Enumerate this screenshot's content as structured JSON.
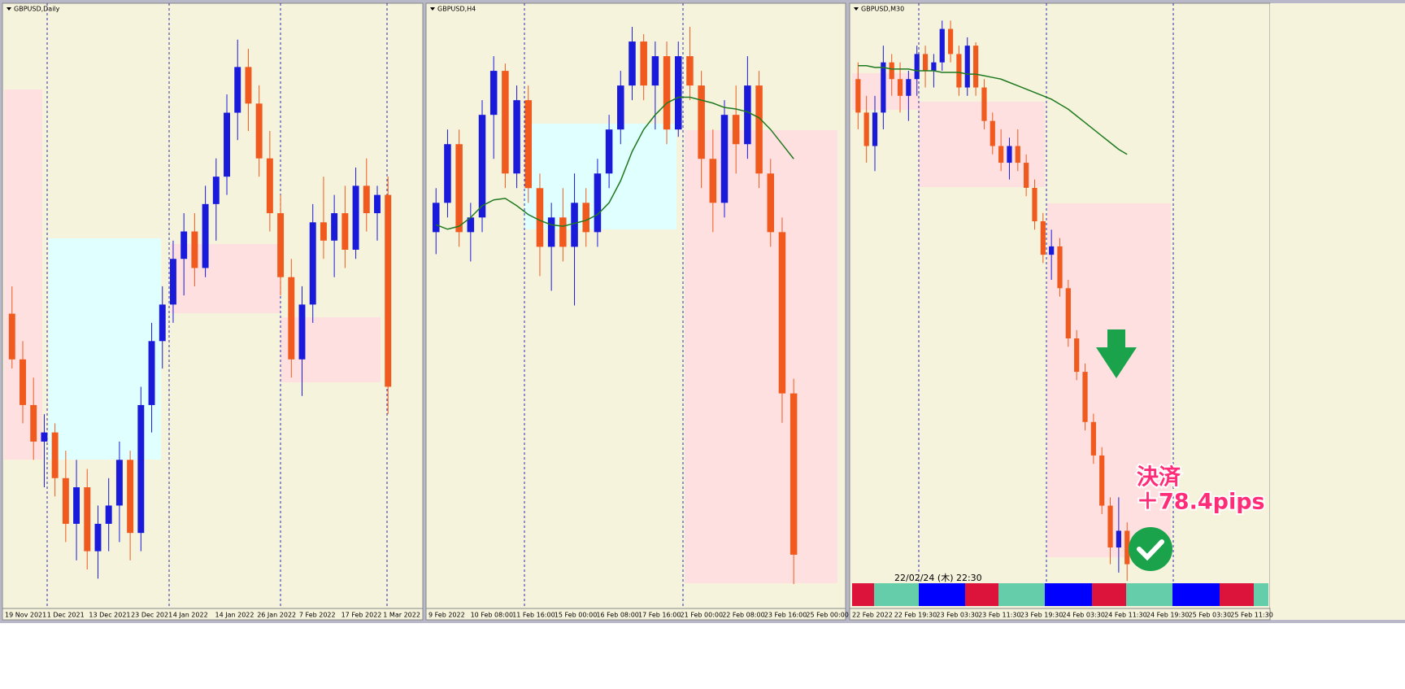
{
  "chart_data": [
    {
      "type": "candlestick",
      "title": "GBPUSD,Daily",
      "up_color": "#1a1adb",
      "down_color": "#f05a1e",
      "ylim": [
        1.313,
        1.378
      ],
      "x_labels": [
        "19 Nov 2021",
        "1 Dec 2021",
        "13 Dec 2021",
        "23 Dec 2021",
        "4 Jan 2022",
        "14 Jan 2022",
        "26 Jan 2022",
        "7 Feb 2022",
        "17 Feb 2022",
        "1 Mar 2022"
      ],
      "ohlc": [
        [
          1.345,
          1.348,
          1.339,
          1.34
        ],
        [
          1.34,
          1.342,
          1.333,
          1.335
        ],
        [
          1.335,
          1.338,
          1.329,
          1.331
        ],
        [
          1.331,
          1.334,
          1.326,
          1.332
        ],
        [
          1.332,
          1.333,
          1.325,
          1.327
        ],
        [
          1.327,
          1.33,
          1.32,
          1.322
        ],
        [
          1.322,
          1.329,
          1.318,
          1.326
        ],
        [
          1.326,
          1.328,
          1.317,
          1.319
        ],
        [
          1.319,
          1.324,
          1.316,
          1.322
        ],
        [
          1.322,
          1.327,
          1.319,
          1.324
        ],
        [
          1.324,
          1.331,
          1.32,
          1.329
        ],
        [
          1.329,
          1.33,
          1.318,
          1.321
        ],
        [
          1.321,
          1.337,
          1.319,
          1.335
        ],
        [
          1.335,
          1.344,
          1.332,
          1.342
        ],
        [
          1.342,
          1.348,
          1.339,
          1.346
        ],
        [
          1.346,
          1.353,
          1.344,
          1.351
        ],
        [
          1.351,
          1.356,
          1.347,
          1.354
        ],
        [
          1.354,
          1.356,
          1.348,
          1.35
        ],
        [
          1.35,
          1.359,
          1.349,
          1.357
        ],
        [
          1.357,
          1.362,
          1.353,
          1.36
        ],
        [
          1.36,
          1.369,
          1.358,
          1.367
        ],
        [
          1.367,
          1.375,
          1.364,
          1.372
        ],
        [
          1.372,
          1.374,
          1.365,
          1.368
        ],
        [
          1.368,
          1.37,
          1.36,
          1.362
        ],
        [
          1.362,
          1.365,
          1.354,
          1.356
        ],
        [
          1.356,
          1.358,
          1.347,
          1.349
        ],
        [
          1.349,
          1.351,
          1.338,
          1.34
        ],
        [
          1.34,
          1.348,
          1.336,
          1.346
        ],
        [
          1.346,
          1.357,
          1.344,
          1.355
        ],
        [
          1.355,
          1.36,
          1.351,
          1.353
        ],
        [
          1.353,
          1.358,
          1.349,
          1.356
        ],
        [
          1.356,
          1.359,
          1.35,
          1.352
        ],
        [
          1.352,
          1.361,
          1.351,
          1.359
        ],
        [
          1.359,
          1.362,
          1.354,
          1.356
        ],
        [
          1.356,
          1.359,
          1.353,
          1.358
        ],
        [
          1.358,
          1.36,
          1.334,
          1.337
        ]
      ]
    },
    {
      "type": "candlestick",
      "title": "GBPUSD,H4",
      "up_color": "#1a1adb",
      "down_color": "#f05a1e",
      "ma_color": "#1f7a1f",
      "ylim": [
        1.3255,
        1.366
      ],
      "x_labels": [
        "9 Feb 2022",
        "10 Feb 08:00",
        "11 Feb 16:00",
        "15 Feb 00:00",
        "16 Feb 08:00",
        "17 Feb 16:00",
        "21 Feb 00:00",
        "22 Feb 08:00",
        "23 Feb 16:00",
        "25 Feb 00:00"
      ],
      "ohlc": [
        [
          1.351,
          1.354,
          1.3495,
          1.353
        ],
        [
          1.353,
          1.358,
          1.352,
          1.357
        ],
        [
          1.357,
          1.358,
          1.35,
          1.351
        ],
        [
          1.351,
          1.353,
          1.349,
          1.352
        ],
        [
          1.352,
          1.36,
          1.351,
          1.359
        ],
        [
          1.359,
          1.363,
          1.356,
          1.362
        ],
        [
          1.362,
          1.3625,
          1.354,
          1.355
        ],
        [
          1.355,
          1.361,
          1.354,
          1.36
        ],
        [
          1.36,
          1.361,
          1.353,
          1.354
        ],
        [
          1.354,
          1.355,
          1.348,
          1.35
        ],
        [
          1.35,
          1.353,
          1.347,
          1.352
        ],
        [
          1.352,
          1.354,
          1.349,
          1.35
        ],
        [
          1.35,
          1.355,
          1.346,
          1.353
        ],
        [
          1.353,
          1.354,
          1.35,
          1.351
        ],
        [
          1.351,
          1.356,
          1.35,
          1.355
        ],
        [
          1.355,
          1.359,
          1.354,
          1.358
        ],
        [
          1.358,
          1.362,
          1.357,
          1.361
        ],
        [
          1.361,
          1.365,
          1.36,
          1.364
        ],
        [
          1.364,
          1.3645,
          1.36,
          1.361
        ],
        [
          1.361,
          1.364,
          1.358,
          1.363
        ],
        [
          1.363,
          1.364,
          1.357,
          1.358
        ],
        [
          1.358,
          1.364,
          1.3575,
          1.363
        ],
        [
          1.363,
          1.365,
          1.36,
          1.361
        ],
        [
          1.361,
          1.362,
          1.354,
          1.356
        ],
        [
          1.356,
          1.358,
          1.351,
          1.353
        ],
        [
          1.353,
          1.36,
          1.352,
          1.359
        ],
        [
          1.359,
          1.361,
          1.355,
          1.357
        ],
        [
          1.357,
          1.363,
          1.356,
          1.361
        ],
        [
          1.361,
          1.362,
          1.354,
          1.355
        ],
        [
          1.355,
          1.356,
          1.35,
          1.351
        ],
        [
          1.351,
          1.352,
          1.338,
          1.34
        ],
        [
          1.34,
          1.341,
          1.327,
          1.329
        ]
      ],
      "ma": [
        1.3515,
        1.3512,
        1.3514,
        1.352,
        1.3528,
        1.3532,
        1.3533,
        1.3528,
        1.3522,
        1.3518,
        1.3515,
        1.3514,
        1.3516,
        1.3518,
        1.3522,
        1.353,
        1.3545,
        1.3565,
        1.358,
        1.359,
        1.3598,
        1.3602,
        1.3602,
        1.36,
        1.3598,
        1.3595,
        1.3594,
        1.3592,
        1.3588,
        1.358,
        1.357,
        1.356
      ]
    },
    {
      "type": "candlestick",
      "title": "GBPUSD,M30",
      "up_color": "#1a1adb",
      "down_color": "#f05a1e",
      "ma_color": "#1f7a1f",
      "ylim": [
        1.3255,
        1.361
      ],
      "x_labels": [
        "22 Feb 2022",
        "22 Feb 19:30",
        "23 Feb 03:30",
        "23 Feb 11:30",
        "23 Feb 19:30",
        "24 Feb 03:30",
        "24 Feb 11:30",
        "24 Feb 19:30",
        "25 Feb 03:30",
        "25 Feb 11:30"
      ],
      "ohlc": [
        [
          1.357,
          1.358,
          1.354,
          1.355
        ],
        [
          1.355,
          1.356,
          1.352,
          1.353
        ],
        [
          1.353,
          1.356,
          1.3515,
          1.355
        ],
        [
          1.355,
          1.359,
          1.354,
          1.358
        ],
        [
          1.358,
          1.3585,
          1.356,
          1.357
        ],
        [
          1.357,
          1.358,
          1.355,
          1.356
        ],
        [
          1.356,
          1.3575,
          1.3545,
          1.357
        ],
        [
          1.357,
          1.359,
          1.356,
          1.3585
        ],
        [
          1.3585,
          1.359,
          1.3565,
          1.3575
        ],
        [
          1.3575,
          1.3585,
          1.3565,
          1.358
        ],
        [
          1.358,
          1.3605,
          1.3575,
          1.36
        ],
        [
          1.36,
          1.3605,
          1.358,
          1.3585
        ],
        [
          1.3585,
          1.359,
          1.356,
          1.3565
        ],
        [
          1.3565,
          1.3595,
          1.356,
          1.359
        ],
        [
          1.359,
          1.3592,
          1.356,
          1.3565
        ],
        [
          1.3565,
          1.357,
          1.354,
          1.3545
        ],
        [
          1.3545,
          1.355,
          1.3525,
          1.353
        ],
        [
          1.353,
          1.354,
          1.3515,
          1.352
        ],
        [
          1.352,
          1.3535,
          1.351,
          1.353
        ],
        [
          1.353,
          1.354,
          1.3515,
          1.352
        ],
        [
          1.352,
          1.3525,
          1.35,
          1.3505
        ],
        [
          1.3505,
          1.351,
          1.348,
          1.3485
        ],
        [
          1.3485,
          1.349,
          1.346,
          1.3465
        ],
        [
          1.3465,
          1.348,
          1.345,
          1.347
        ],
        [
          1.347,
          1.3475,
          1.344,
          1.3445
        ],
        [
          1.3445,
          1.345,
          1.341,
          1.3415
        ],
        [
          1.3415,
          1.342,
          1.339,
          1.3395
        ],
        [
          1.3395,
          1.34,
          1.336,
          1.3365
        ],
        [
          1.3365,
          1.337,
          1.334,
          1.3345
        ],
        [
          1.3345,
          1.335,
          1.331,
          1.3315
        ],
        [
          1.3315,
          1.332,
          1.328,
          1.329
        ],
        [
          1.329,
          1.332,
          1.3275,
          1.33
        ],
        [
          1.33,
          1.3305,
          1.327,
          1.328
        ]
      ],
      "ma": [
        1.3578,
        1.3578,
        1.3577,
        1.3577,
        1.3576,
        1.3576,
        1.3576,
        1.3575,
        1.3575,
        1.3575,
        1.3574,
        1.3574,
        1.3574,
        1.3573,
        1.3573,
        1.3572,
        1.3571,
        1.357,
        1.3568,
        1.3566,
        1.3564,
        1.3562,
        1.356,
        1.3558,
        1.3555,
        1.3552,
        1.3548,
        1.3544,
        1.354,
        1.3536,
        1.3532,
        1.3528,
        1.3525
      ],
      "annotation": [
        "決済",
        "＋78.4pips"
      ],
      "timestamp": "22/02/24 (木) 22:30"
    }
  ]
}
